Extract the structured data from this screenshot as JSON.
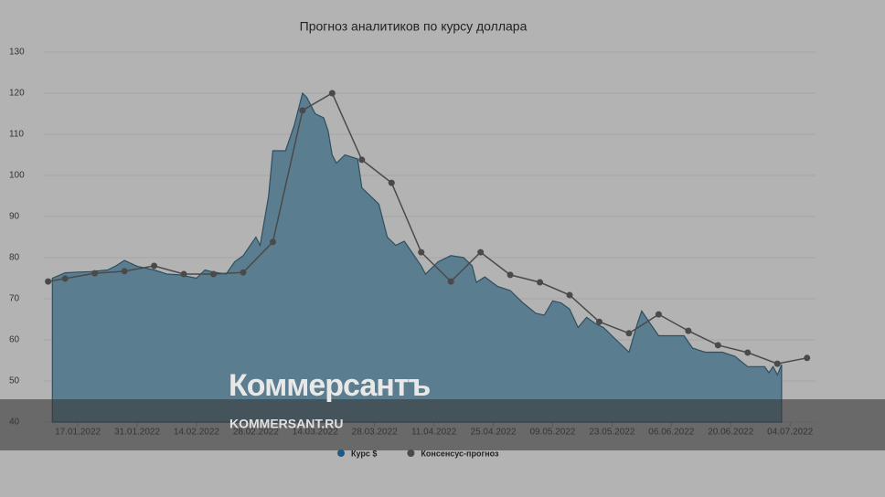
{
  "chart_data": {
    "type": "line",
    "title": "Прогноз аналитиков по курсу доллара",
    "series": [
      {
        "name": "Курс $",
        "color": "#5b7d90",
        "kind": "area",
        "x": [
          "11.01.2022",
          "14.01.2022",
          "17.01.2022",
          "20.01.2022",
          "24.01.2022",
          "26.01.2022",
          "28.01.2022",
          "31.01.2022",
          "04.02.2022",
          "07.02.2022",
          "10.02.2022",
          "14.02.2022",
          "16.02.2022",
          "18.02.2022",
          "21.02.2022",
          "23.02.2022",
          "25.02.2022",
          "28.02.2022",
          "01.03.2022",
          "03.03.2022",
          "04.03.2022",
          "07.03.2022",
          "09.03.2022",
          "11.03.2022",
          "12.03.2022",
          "14.03.2022",
          "16.03.2022",
          "17.03.2022",
          "18.03.2022",
          "19.03.2022",
          "21.03.2022",
          "24.03.2022",
          "25.03.2022",
          "29.03.2022",
          "31.03.2022",
          "02.04.2022",
          "04.04.2022",
          "06.04.2022",
          "08.04.2022",
          "09.04.2022",
          "12.04.2022",
          "15.04.2022",
          "18.04.2022",
          "20.04.2022",
          "21.04.2022",
          "23.04.2022",
          "26.04.2022",
          "29.04.2022",
          "02.05.2022",
          "05.05.2022",
          "07.05.2022",
          "09.05.2022",
          "11.05.2022",
          "13.05.2022",
          "15.05.2022",
          "17.05.2022",
          "19.05.2022",
          "21.05.2022",
          "24.05.2022",
          "27.05.2022",
          "29.05.2022",
          "30.05.2022",
          "01.06.2022",
          "03.06.2022",
          "06.06.2022",
          "09.06.2022",
          "11.06.2022",
          "14.06.2022",
          "18.06.2022",
          "21.06.2022",
          "24.06.2022",
          "28.06.2022",
          "29.06.2022",
          "30.06.2022",
          "01.07.2022",
          "02.07.2022"
        ],
        "values": [
          75,
          76.3,
          76.5,
          76.6,
          77,
          78,
          79.3,
          77.9,
          77,
          76,
          75.8,
          75,
          77,
          76.5,
          76,
          79,
          80.5,
          85,
          83,
          95,
          106,
          106,
          112,
          120,
          119,
          115,
          114,
          111,
          105,
          103,
          105,
          104,
          97,
          93,
          85,
          83,
          84,
          81,
          78,
          76,
          79,
          80.5,
          80,
          78,
          74,
          75.3,
          73,
          72,
          69,
          66.5,
          66,
          69.5,
          69,
          67.5,
          63,
          65.5,
          64,
          63,
          60,
          57,
          64,
          67,
          64,
          61,
          61,
          61,
          58,
          57,
          57,
          56,
          53.5,
          53.5,
          52,
          53.5,
          51.5,
          54
        ]
      },
      {
        "name": "Консенсус-прогноз",
        "color": "#4a4a4a",
        "kind": "line",
        "x": [
          "10.01.2022",
          "14.01.2022",
          "21.01.2022",
          "28.01.2022",
          "04.02.2022",
          "11.02.2022",
          "18.02.2022",
          "25.02.2022",
          "04.03.2022",
          "11.03.2022",
          "18.03.2022",
          "25.03.2022",
          "01.04.2022",
          "08.04.2022",
          "15.04.2022",
          "22.04.2022",
          "29.04.2022",
          "06.05.2022",
          "13.05.2022",
          "20.05.2022",
          "27.05.2022",
          "03.06.2022",
          "10.06.2022",
          "17.06.2022",
          "24.06.2022",
          "01.07.2022",
          "08.07.2022"
        ],
        "values": [
          74.2,
          74.9,
          76.2,
          76.7,
          78,
          76,
          76,
          76.4,
          83.8,
          115.8,
          120,
          103.8,
          98.2,
          81.3,
          74.2,
          81.3,
          75.8,
          74,
          70.9,
          64.4,
          61.6,
          66.2,
          62.2,
          58.7,
          56.9,
          54.2,
          55.6
        ]
      }
    ],
    "xlim": [
      "09.01.2022",
      "10.07.2022"
    ],
    "xticks": [
      "17.01.2022",
      "31.01.2022",
      "14.02.2022",
      "28.02.2022",
      "14.03.2022",
      "28.03.2022",
      "11.04.2022",
      "25.04.2022",
      "09.05.2022",
      "23.05.2022",
      "06.06.2022",
      "20.06.2022",
      "04.07.2022"
    ],
    "ylim": [
      40,
      130
    ],
    "yticks": [
      40,
      50,
      60,
      70,
      80,
      90,
      100,
      110,
      120,
      130
    ],
    "grid": true
  },
  "watermark": {
    "brand": "Коммерсантъ",
    "url": "KOMMERSANT.RU"
  }
}
